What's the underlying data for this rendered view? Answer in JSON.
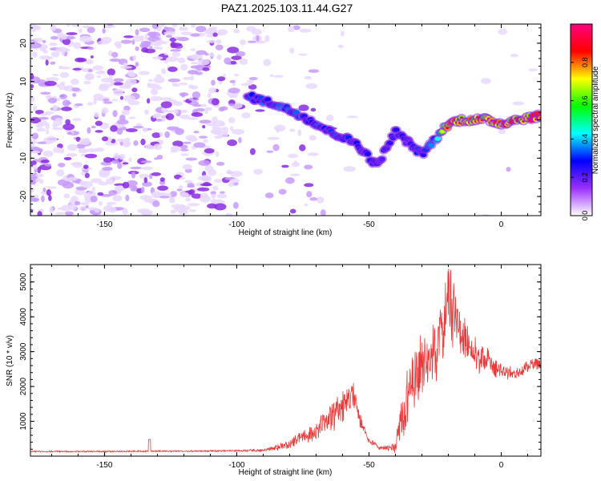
{
  "figure": {
    "title": "PAZ1.2025.103.11.44.G27"
  },
  "chart_data": [
    {
      "type": "heatmap",
      "title": "PAZ1.2025.103.11.44.G27",
      "xlabel": "Height of straight line (km)",
      "ylabel": "Frequency (Hz)",
      "xlim": [
        -178,
        15
      ],
      "ylim": [
        -25,
        25
      ],
      "xticks": [
        -150,
        -100,
        -50,
        0
      ],
      "yticks": [
        -20,
        -10,
        0,
        10,
        20
      ],
      "colorbar": {
        "label": "Normalized spectral amplitude",
        "range": [
          0,
          1
        ],
        "ticks": [
          0.0,
          0.2,
          0.4,
          0.6,
          0.8
        ],
        "colormap": [
          "#ffffff",
          "#9b30ff",
          "#0000ff",
          "#00ffff",
          "#00ff00",
          "#ffff00",
          "#ff0000",
          "#ff0080"
        ]
      },
      "ridge": {
        "description_points_x": [
          -95,
          -85,
          -75,
          -65,
          -55,
          -47,
          -40,
          -35,
          -30,
          -25,
          -20,
          -15,
          -10,
          -5,
          0,
          5,
          15
        ],
        "description_points_y": [
          6,
          4,
          1,
          -3,
          -6,
          -12,
          -3,
          -6,
          -9,
          -5,
          -1,
          0,
          0,
          0,
          -1,
          0,
          1
        ],
        "amplitude": [
          0.3,
          0.35,
          0.35,
          0.3,
          0.3,
          0.25,
          0.3,
          0.25,
          0.3,
          0.35,
          0.8,
          0.85,
          0.8,
          0.85,
          0.9,
          0.85,
          0.95
        ]
      }
    },
    {
      "type": "line",
      "xlabel": "Height of straight line (km)",
      "ylabel": "SNR (10 * v/v)",
      "xlim": [
        -178,
        15
      ],
      "ylim": [
        0,
        5500
      ],
      "xticks": [
        -150,
        -100,
        -50,
        0
      ],
      "yticks": [
        1000,
        2000,
        3000,
        4000,
        5000
      ],
      "color": "#e83a3a",
      "envelope": {
        "x": [
          -178,
          -150,
          -120,
          -100,
          -90,
          -85,
          -80,
          -75,
          -70,
          -65,
          -60,
          -56,
          -54,
          -50,
          -45,
          -40,
          -38,
          -35,
          -32,
          -28,
          -25,
          -22,
          -20,
          -18,
          -15,
          -12,
          -10,
          -7,
          -5,
          -3,
          0,
          5,
          10,
          15
        ],
        "y": [
          150,
          150,
          160,
          170,
          200,
          300,
          450,
          700,
          900,
          1300,
          1800,
          2200,
          1400,
          500,
          250,
          400,
          1500,
          2500,
          3000,
          3500,
          3800,
          4200,
          5400,
          4800,
          3900,
          3600,
          3300,
          3000,
          3200,
          2700,
          2600,
          2500,
          2700,
          2800
        ],
        "noise_amplitude": [
          30,
          30,
          30,
          35,
          60,
          120,
          180,
          260,
          380,
          550,
          700,
          600,
          450,
          120,
          90,
          250,
          900,
          1200,
          1400,
          1400,
          1400,
          1500,
          1600,
          1400,
          900,
          800,
          700,
          600,
          500,
          350,
          300,
          250,
          250,
          250
        ]
      }
    }
  ]
}
